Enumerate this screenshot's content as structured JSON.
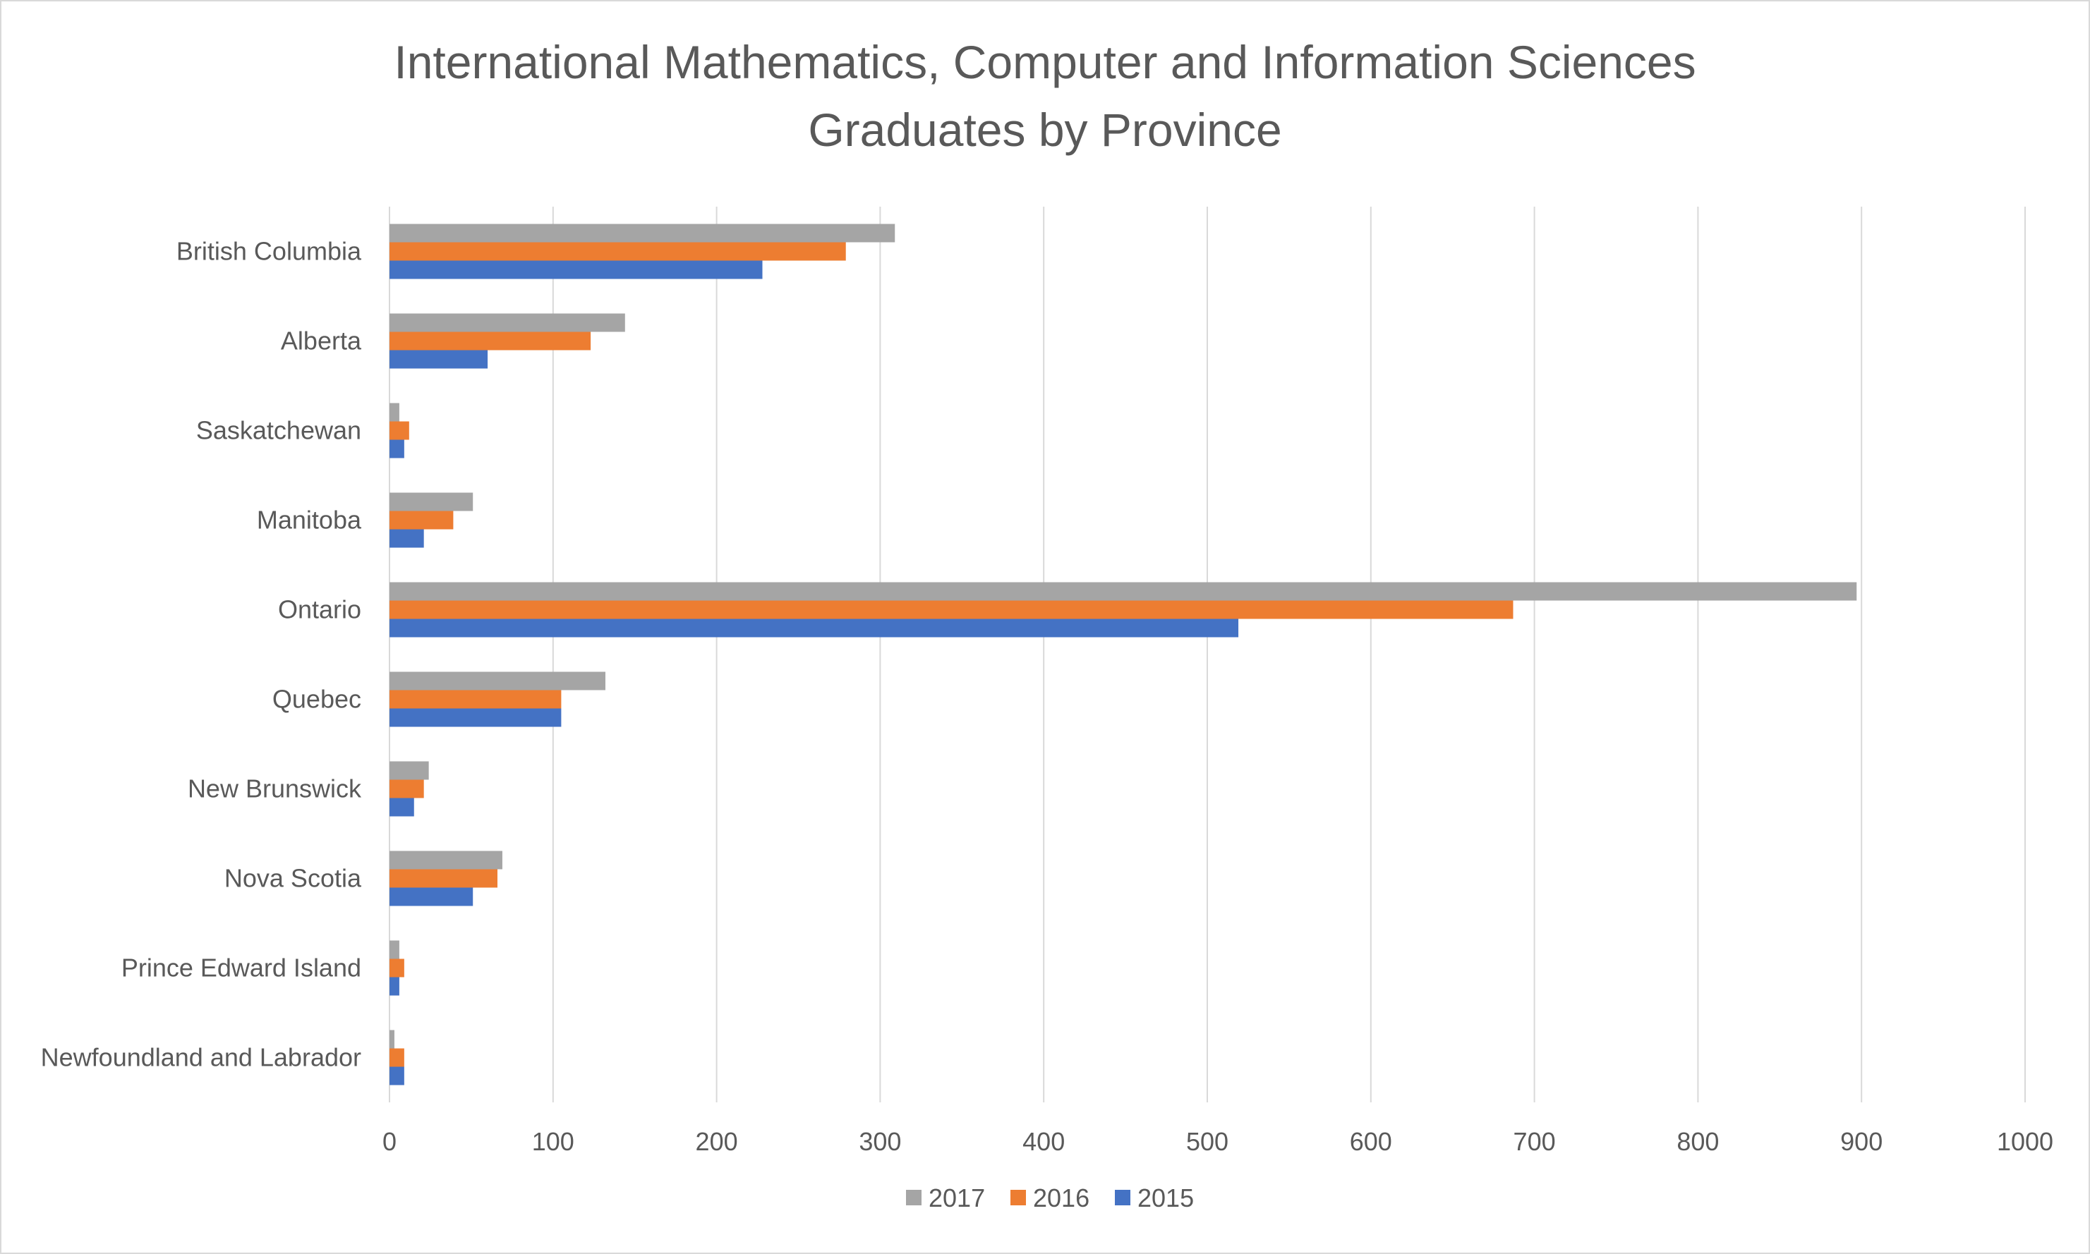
{
  "chart_data": {
    "type": "bar",
    "orientation": "horizontal",
    "title_lines": [
      "International Mathematics, Computer and Information Sciences",
      "Graduates by Province"
    ],
    "categories": [
      "British Columbia",
      "Alberta",
      "Saskatchewan",
      "Manitoba",
      "Ontario",
      "Quebec",
      "New Brunswick",
      "Nova Scotia",
      "Prince Edward Island",
      "Newfoundland and Labrador"
    ],
    "series": [
      {
        "name": "2017",
        "color": "#a5a5a5",
        "values": [
          309,
          144,
          6,
          51,
          897,
          132,
          24,
          69,
          6,
          3
        ]
      },
      {
        "name": "2016",
        "color": "#ed7d31",
        "values": [
          279,
          123,
          12,
          39,
          687,
          105,
          21,
          66,
          9,
          9
        ]
      },
      {
        "name": "2015",
        "color": "#4472c4",
        "values": [
          228,
          60,
          9,
          21,
          519,
          105,
          15,
          51,
          6,
          9
        ]
      }
    ],
    "xlim": [
      0,
      1000
    ],
    "xticks": [
      "0",
      "100",
      "200",
      "300",
      "400",
      "500",
      "600",
      "700",
      "800",
      "900",
      "1000"
    ],
    "grid": "vertical",
    "legend_position": "bottom"
  }
}
